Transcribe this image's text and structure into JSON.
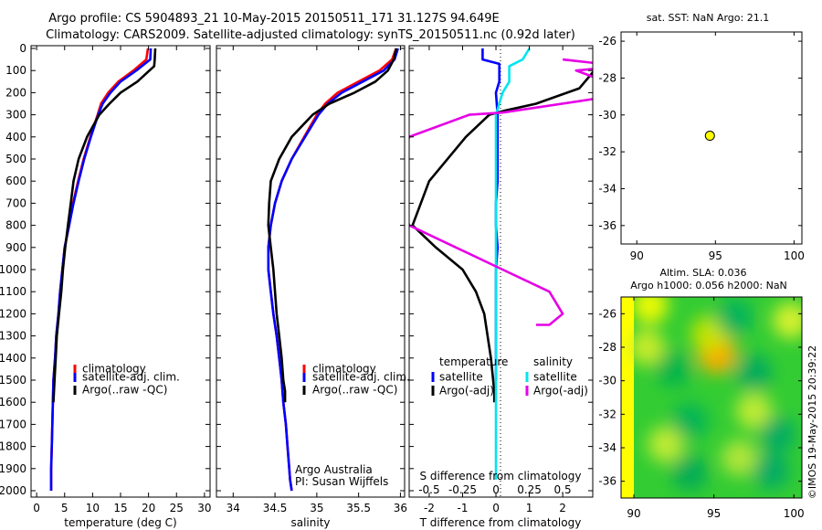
{
  "title_line1": "Argo profile: CS 5904893_21 10-May-2015 20150511_171 31.127S 94.649E",
  "title_line2": "Climatology: CARS2009. Satellite-adjusted climatology: synTS_20150511.nc (0.92d later)",
  "colors": {
    "climatology": "#ff0000",
    "satellite": "#0000ff",
    "argo": "#000000",
    "sal_satellite": "#00e5ee",
    "sal_argo": "#e600e6",
    "marker": "#ffff00"
  },
  "depth_axis": {
    "ylim": [
      0,
      2050
    ],
    "ticks": [
      0,
      100,
      200,
      300,
      400,
      500,
      600,
      700,
      800,
      900,
      1000,
      1100,
      1200,
      1300,
      1400,
      1500,
      1600,
      1700,
      1800,
      1900,
      2000
    ]
  },
  "chart_data": [
    {
      "type": "line",
      "xlabel": "temperature (deg C)",
      "xlim": [
        -1,
        31
      ],
      "xticks": [
        "0",
        "5",
        "10",
        "15",
        "20",
        "25",
        "30"
      ],
      "series": [
        {
          "name": "climatology",
          "x": [
            19.9,
            19.6,
            17.3,
            14.6,
            12.8,
            11.5,
            10.9,
            9.6,
            8.4,
            7.4,
            6.5,
            5.8,
            5.0,
            4.6,
            4.2,
            3.9,
            3.5,
            3.3,
            3.0,
            2.9,
            2.8,
            2.7,
            2.6,
            2.6,
            2.6
          ],
          "y": [
            0,
            50,
            100,
            150,
            200,
            250,
            300,
            400,
            500,
            600,
            700,
            800,
            900,
            1000,
            1100,
            1200,
            1300,
            1400,
            1500,
            1600,
            1700,
            1800,
            1900,
            1950,
            2000
          ]
        },
        {
          "name": "satellite-adj. clim.",
          "x": [
            20.4,
            20.3,
            17.8,
            15.0,
            13.2,
            11.8,
            11.0,
            9.7,
            8.5,
            7.5,
            6.6,
            5.8,
            5.0,
            4.6,
            4.2,
            3.9,
            3.5,
            3.3,
            3.0,
            2.9,
            2.8,
            2.7,
            2.6,
            2.6,
            2.6
          ],
          "y": [
            0,
            50,
            100,
            150,
            200,
            250,
            300,
            400,
            500,
            600,
            700,
            800,
            900,
            1000,
            1100,
            1200,
            1300,
            1400,
            1500,
            1600,
            1700,
            1800,
            1900,
            1950,
            2000
          ]
        },
        {
          "name": "Argo(..raw -QC)",
          "x": [
            21.2,
            21.1,
            21.0,
            18.0,
            15.0,
            13.0,
            11.2,
            9.0,
            7.5,
            6.6,
            6.1,
            5.6,
            5.1,
            4.7,
            4.4,
            4.0,
            3.6,
            3.4,
            3.2,
            3.1,
            3.0
          ],
          "y": [
            0,
            50,
            80,
            150,
            200,
            250,
            300,
            400,
            500,
            600,
            700,
            800,
            900,
            1000,
            1100,
            1200,
            1300,
            1400,
            1500,
            1550,
            1600
          ]
        }
      ],
      "legend": [
        "climatology",
        "satellite-adj. clim.",
        "Argo(..raw -QC)"
      ],
      "legend_position": "bottom-right"
    },
    {
      "type": "line",
      "xlabel": "salinity",
      "xlim": [
        33.8,
        36.05
      ],
      "xticks": [
        "34",
        "34.5",
        "35",
        "35.5",
        "36"
      ],
      "series": [
        {
          "name": "climatology",
          "x": [
            35.95,
            35.9,
            35.75,
            35.5,
            35.25,
            35.1,
            35.0,
            34.85,
            34.7,
            34.58,
            34.5,
            34.45,
            34.42,
            34.42,
            34.45,
            34.48,
            34.52,
            34.55,
            34.58,
            34.6,
            34.63,
            34.65,
            34.67,
            34.68,
            34.7
          ],
          "y": [
            0,
            50,
            100,
            150,
            200,
            250,
            300,
            400,
            500,
            600,
            700,
            800,
            900,
            1000,
            1100,
            1200,
            1300,
            1400,
            1500,
            1600,
            1700,
            1800,
            1900,
            1950,
            2000
          ]
        },
        {
          "name": "satellite-adj. clim.",
          "x": [
            35.97,
            35.93,
            35.8,
            35.55,
            35.3,
            35.13,
            35.02,
            34.86,
            34.7,
            34.58,
            34.5,
            34.45,
            34.42,
            34.42,
            34.45,
            34.48,
            34.52,
            34.55,
            34.58,
            34.6,
            34.63,
            34.65,
            34.67,
            34.68,
            34.7
          ],
          "y": [
            0,
            50,
            100,
            150,
            200,
            250,
            300,
            400,
            500,
            600,
            700,
            800,
            900,
            1000,
            1100,
            1200,
            1300,
            1400,
            1500,
            1600,
            1700,
            1800,
            1900,
            1950,
            2000
          ]
        },
        {
          "name": "Argo(..raw -QC)",
          "x": [
            35.95,
            35.92,
            35.85,
            35.7,
            35.45,
            35.15,
            34.95,
            34.7,
            34.55,
            34.45,
            34.43,
            34.42,
            34.45,
            34.48,
            34.5,
            34.52,
            34.55,
            34.58,
            34.6,
            34.62,
            34.62
          ],
          "y": [
            0,
            50,
            100,
            150,
            200,
            250,
            300,
            400,
            500,
            600,
            700,
            800,
            900,
            1000,
            1100,
            1200,
            1300,
            1400,
            1500,
            1550,
            1600
          ]
        }
      ],
      "legend": [
        "climatology",
        "satellite-adj. clim.",
        "Argo(..raw -QC)"
      ],
      "legend_position": "bottom-right",
      "annotations": [
        "Argo Australia",
        "PI: Susan Wijffels"
      ]
    },
    {
      "type": "line",
      "xlabel": "T difference from climatology",
      "xlabel_top": "S difference from climatology",
      "xlim": [
        -2.6,
        2.9
      ],
      "xticks": [
        "-2",
        "-1",
        "0",
        "1",
        "2"
      ],
      "xticks_top": [
        "-0.5",
        "-0.25",
        "0",
        "0.25",
        "0.5"
      ],
      "series": [
        {
          "name": "temperature satellite",
          "x": [
            -0.4,
            -0.4,
            0.1,
            0.1,
            0.0,
            0.05,
            0.05,
            0.05,
            0.05,
            0.0,
            0.0,
            0.05,
            0.0,
            0.0,
            0.0,
            0.0,
            0.0,
            0.0
          ],
          "y": [
            0,
            50,
            70,
            150,
            200,
            300,
            400,
            500,
            600,
            700,
            800,
            900,
            1000,
            1100,
            1200,
            1300,
            1400,
            1500
          ]
        },
        {
          "name": "temperature Argo(-adj)",
          "x": [
            3.0,
            3.0,
            2.5,
            1.2,
            0.3,
            -0.2,
            -0.9,
            -2.0,
            -2.5,
            -1.8,
            -1.0,
            -0.6,
            -0.35,
            -0.15,
            -0.05,
            -0.05
          ],
          "y": [
            60,
            90,
            180,
            250,
            280,
            300,
            400,
            600,
            800,
            900,
            1000,
            1100,
            1200,
            1400,
            1550,
            1600
          ]
        },
        {
          "name": "salinity satellite",
          "x": [
            0.25,
            0.2,
            0.1,
            0.1,
            0.05,
            0.0,
            0.0,
            0.0,
            0.0,
            0.0,
            0.0,
            0.0,
            0.0,
            0.0,
            0.0,
            0.0,
            0.0,
            0.0
          ],
          "y": [
            0,
            50,
            80,
            150,
            200,
            300,
            400,
            500,
            600,
            700,
            800,
            900,
            1000,
            1200,
            1400,
            1600,
            1800,
            1950
          ]
        },
        {
          "name": "salinity Argo(-adj)",
          "x": [
            0.5,
            0.95,
            0.6,
            1.05,
            0.05,
            -0.2,
            -0.65,
            -0.75,
            -0.65,
            -0.3,
            0.05,
            0.4,
            0.5,
            0.4,
            0.3
          ],
          "y": [
            50,
            80,
            100,
            200,
            290,
            300,
            400,
            600,
            800,
            900,
            1000,
            1100,
            1200,
            1250,
            1250
          ]
        }
      ],
      "legend_left_title": "temperature",
      "legend_right_title": "salinity",
      "legend_left": [
        "satellite",
        "Argo(-adj)"
      ],
      "legend_right": [
        "satellite",
        "Argo(-adj)"
      ]
    },
    {
      "type": "scatter",
      "title": "sat. SST: NaN Argo: 21.1",
      "xlim": [
        89,
        100.5
      ],
      "ylim": [
        -37,
        -25.5
      ],
      "xticks": [
        "90",
        "95",
        "100"
      ],
      "yticks": [
        "-26",
        "-28",
        "-30",
        "-32",
        "-34",
        "-36"
      ],
      "points": [
        {
          "x": 94.649,
          "y": -31.127
        }
      ]
    },
    {
      "type": "heatmap",
      "title_line1": "Altim. SLA: 0.036",
      "title_line2": "Argo h1000: 0.056 h2000: NaN",
      "xlim": [
        89.2,
        100.5
      ],
      "ylim": [
        -37,
        -25
      ],
      "xticks": [
        "90",
        "95",
        "100"
      ],
      "yticks": [
        "-26",
        "-28",
        "-30",
        "-32",
        "-34",
        "-36"
      ],
      "valid_xmin": 90,
      "background_color": "#ffff00",
      "field_color": "#33cc33",
      "blobs": [
        {
          "x": 95.3,
          "y": -28.6,
          "level": "high",
          "color": "#e63300"
        },
        {
          "x": 95.2,
          "y": -28.4,
          "level": "medium",
          "color": "#ffb200"
        },
        {
          "x": 94.7,
          "y": -27.2,
          "level": "low",
          "color": "#cce600"
        },
        {
          "x": 91.0,
          "y": -25.5,
          "level": "low",
          "color": "#ffff00"
        },
        {
          "x": 90.8,
          "y": -28.0,
          "level": "low",
          "color": "#d4ef2a"
        },
        {
          "x": 99.8,
          "y": -26.4,
          "level": "low",
          "color": "#e6f52e"
        },
        {
          "x": 97.5,
          "y": -31.8,
          "level": "low",
          "color": "#ccee33"
        },
        {
          "x": 92.0,
          "y": -33.8,
          "level": "low",
          "color": "#ccee33"
        },
        {
          "x": 96.6,
          "y": -34.6,
          "level": "low",
          "color": "#bbe83a"
        },
        {
          "x": 92.5,
          "y": -29.3,
          "level": "negative",
          "color": "#00b34d"
        },
        {
          "x": 97.5,
          "y": -29.5,
          "level": "negative",
          "color": "#00a860"
        },
        {
          "x": 93.5,
          "y": -32.4,
          "level": "negative",
          "color": "#00b35a"
        },
        {
          "x": 99.0,
          "y": -33.2,
          "level": "negative",
          "color": "#00aa66"
        },
        {
          "x": 93.5,
          "y": -35.5,
          "level": "negative",
          "color": "#00aa5a"
        },
        {
          "x": 98.6,
          "y": -35.4,
          "level": "negative",
          "color": "#00a86a"
        },
        {
          "x": 96.3,
          "y": -26.2,
          "level": "negative",
          "color": "#00b060"
        }
      ]
    }
  ],
  "credit": "©IMOS 19-May-2015 20:39:22"
}
